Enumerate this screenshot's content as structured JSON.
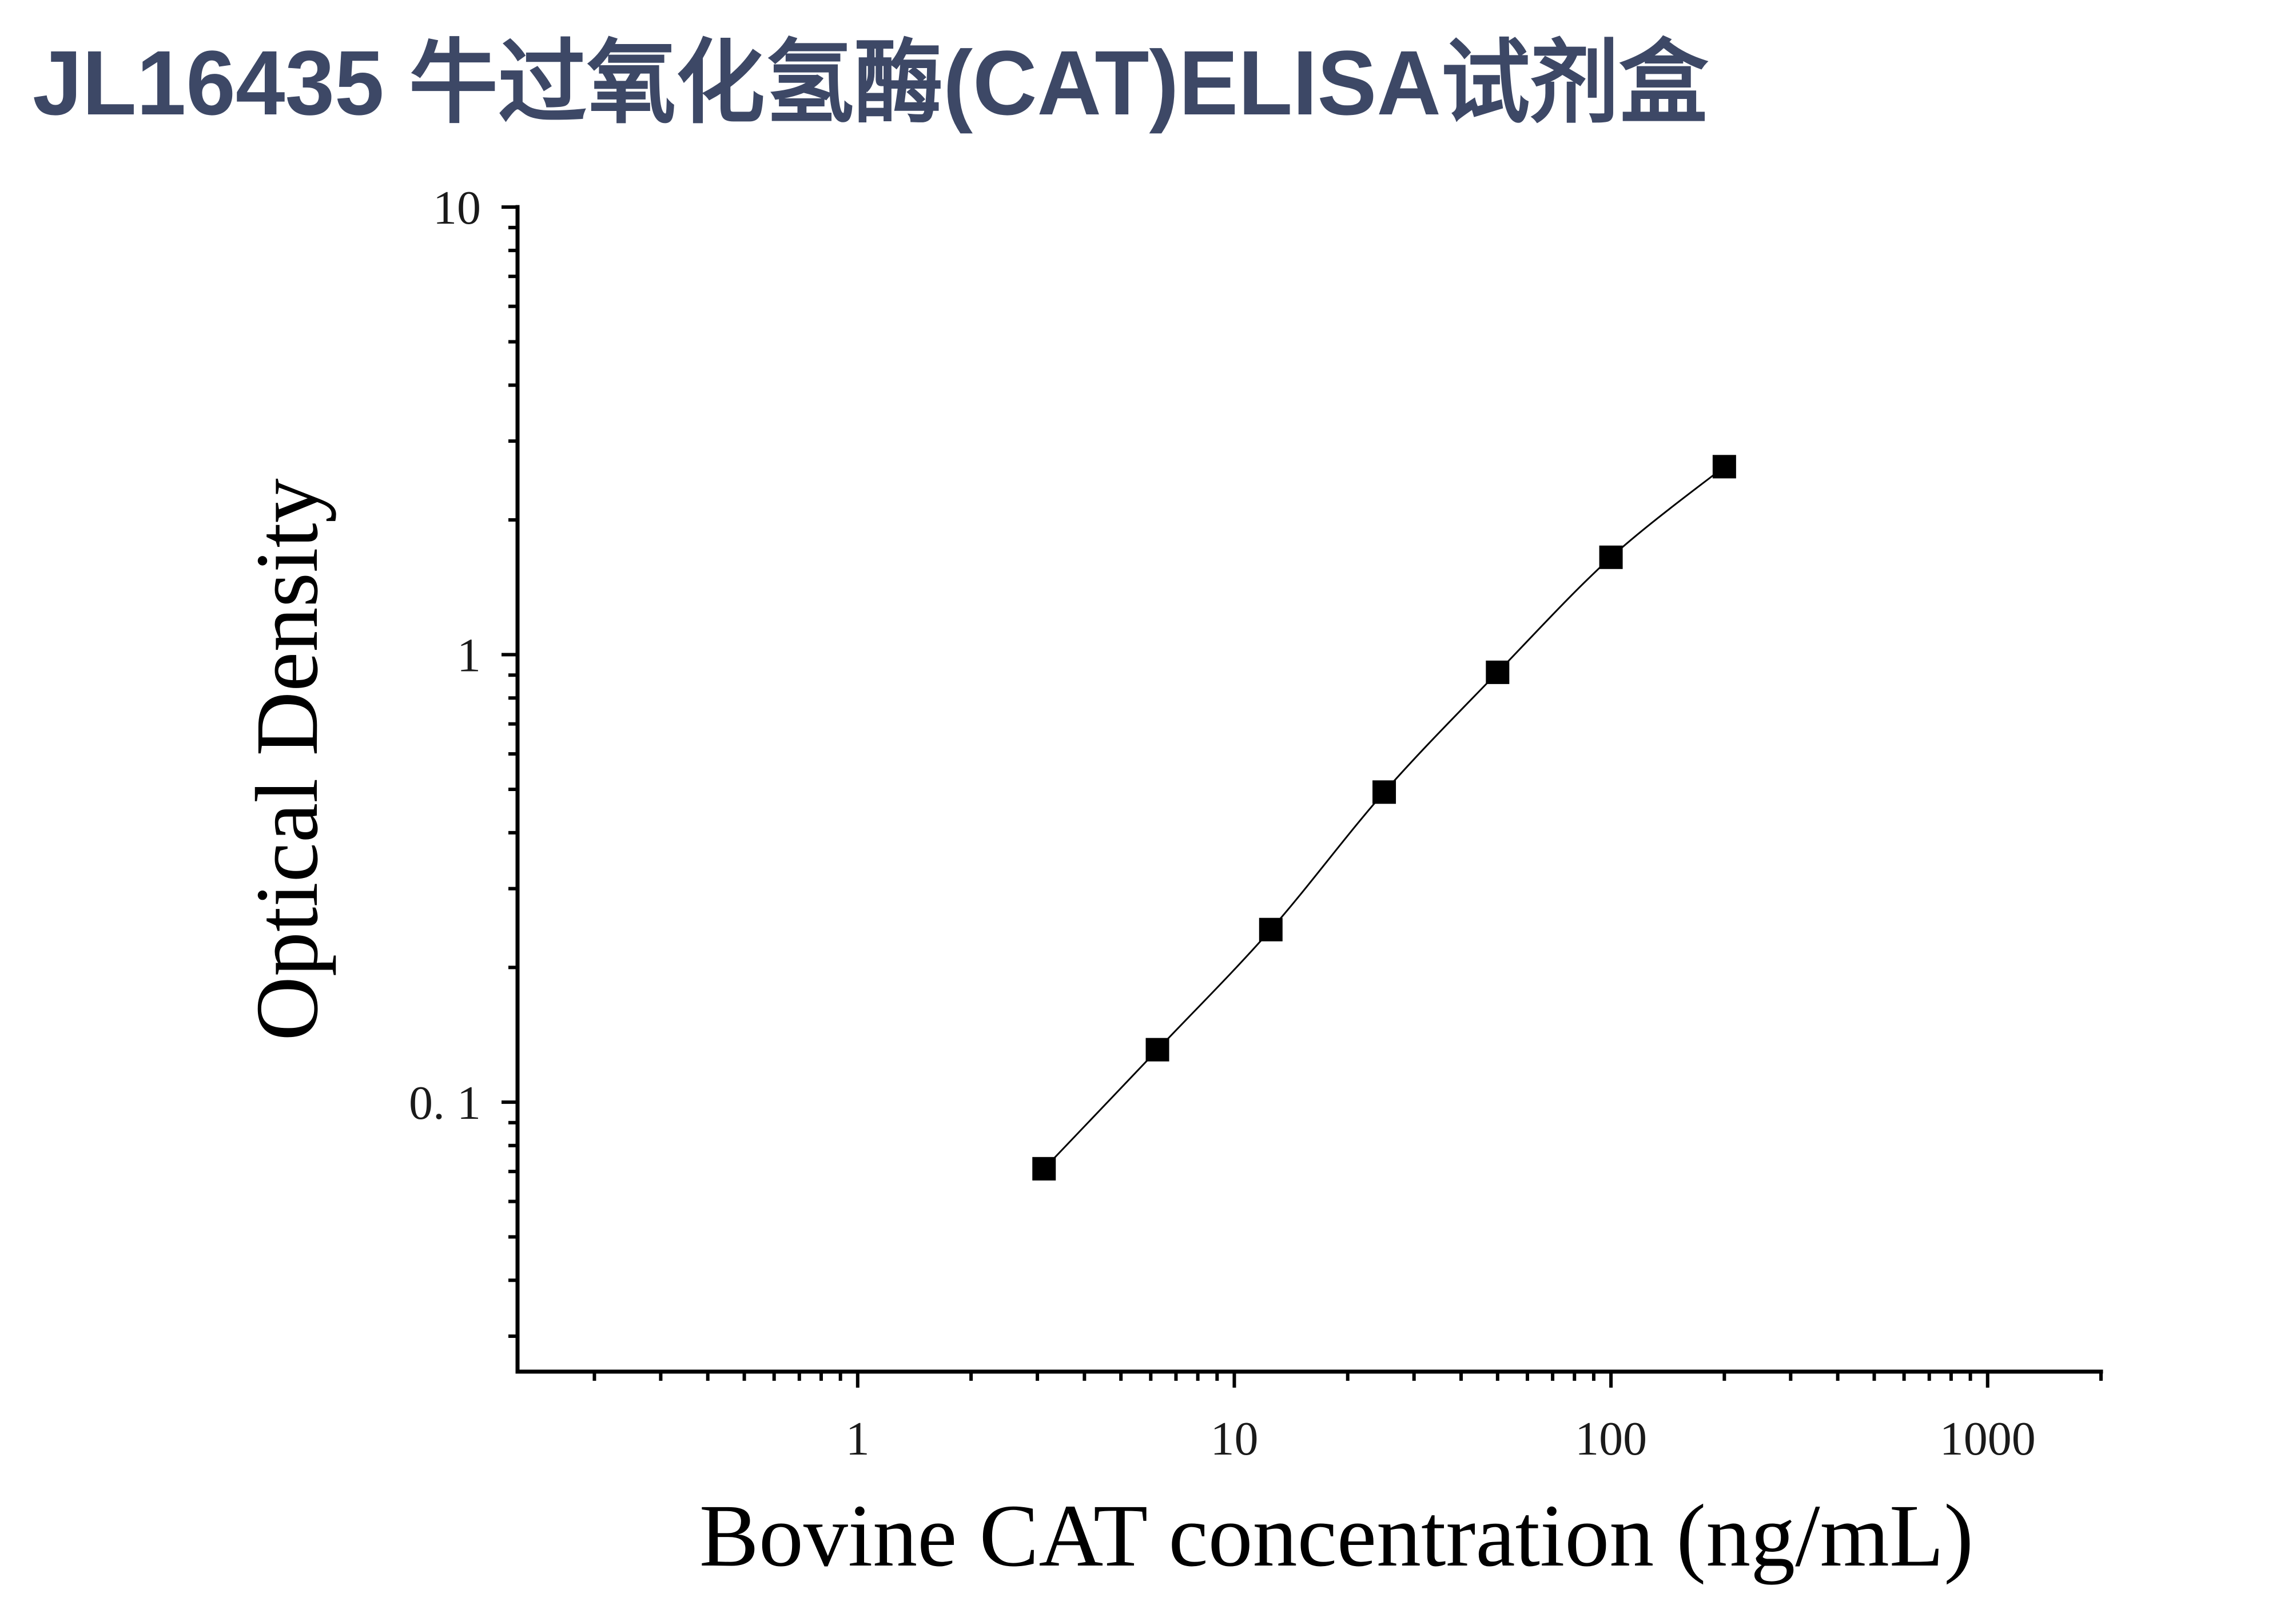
{
  "chart_data": {
    "type": "scatter",
    "title": "JL16435 牛过氧化氢酶(CAT)ELISA试剂盒",
    "xlabel": "Bovine CAT concentration (ng/mL)",
    "ylabel": "Optical Density",
    "xscale": "log",
    "yscale": "log",
    "xlim": [
      0.125,
      2000
    ],
    "ylim": [
      0.025,
      10
    ],
    "xticks": [
      1,
      10,
      100,
      1000
    ],
    "xtick_labels": [
      "1",
      "10",
      "100",
      "1000"
    ],
    "yticks": [
      0.1,
      1,
      10
    ],
    "ytick_labels": [
      "0. 1",
      "1",
      "10"
    ],
    "grid": false,
    "legend": "none",
    "series": [
      {
        "marker": "square",
        "line": "smooth fitted curve",
        "color": "#000000",
        "x": [
          3.125,
          6.25,
          12.5,
          25,
          50,
          100,
          200
        ],
        "y": [
          0.071,
          0.131,
          0.243,
          0.493,
          0.913,
          1.65,
          2.63
        ]
      }
    ]
  },
  "colors": {
    "title": "#3d4866",
    "axes": "#000000",
    "markers": "#000000"
  }
}
